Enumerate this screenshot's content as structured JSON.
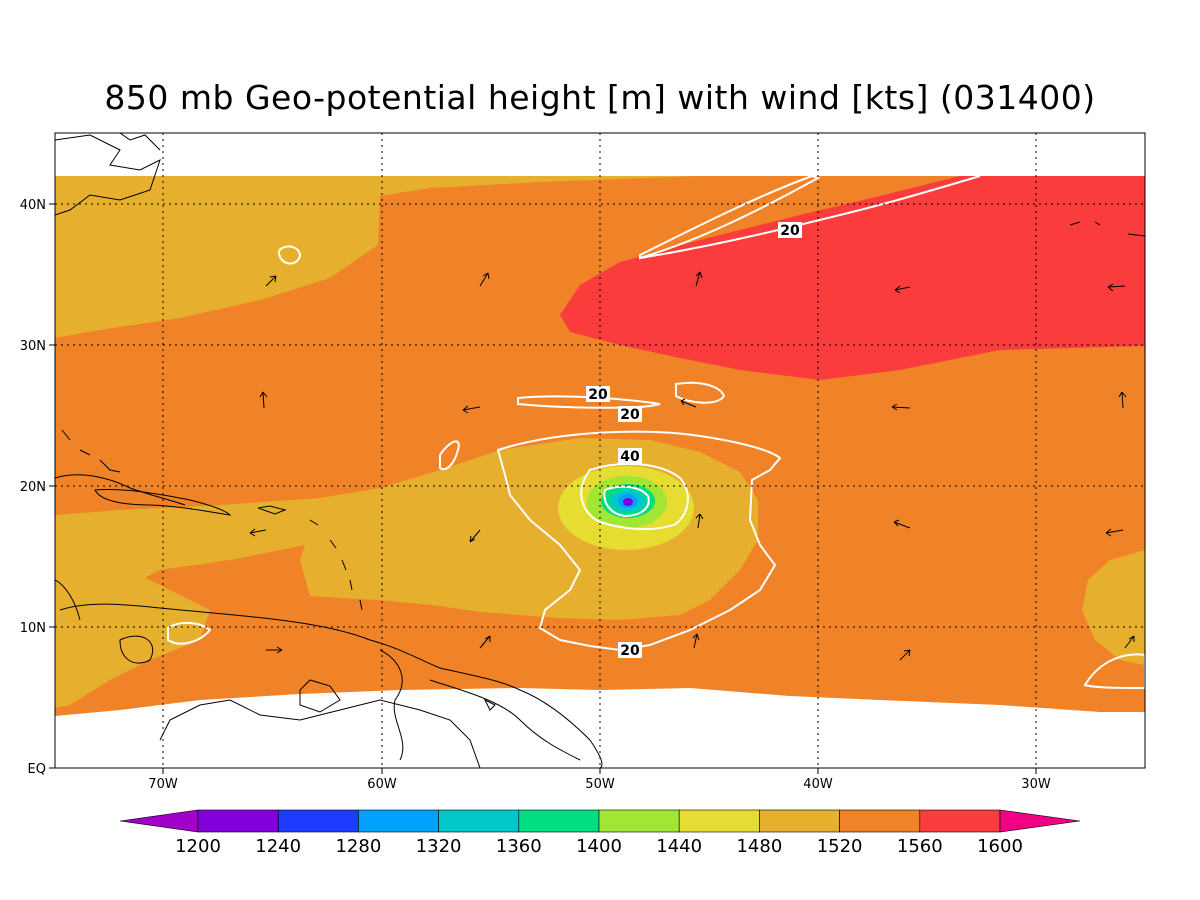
{
  "title": "850 mb Geo-potential height [m] with wind [kts] (031400)",
  "lat_labels": [
    "40N",
    "30N",
    "20N",
    "10N",
    "EQ"
  ],
  "lon_labels": [
    "70W",
    "60W",
    "50W",
    "40W",
    "30W"
  ],
  "colorbar": {
    "labels": [
      "1200",
      "1240",
      "1280",
      "1320",
      "1360",
      "1400",
      "1440",
      "1480",
      "1520",
      "1560",
      "1600"
    ],
    "colors": [
      "#a000c8",
      "#8200dc",
      "#1e3cff",
      "#00a0ff",
      "#00c8c8",
      "#00dc82",
      "#a0e632",
      "#e6dc32",
      "#e6af2d",
      "#f08228",
      "#fa3c3c",
      "#f00082"
    ]
  },
  "contour_labels": [
    "20",
    "20",
    "20",
    "40",
    "20"
  ]
}
